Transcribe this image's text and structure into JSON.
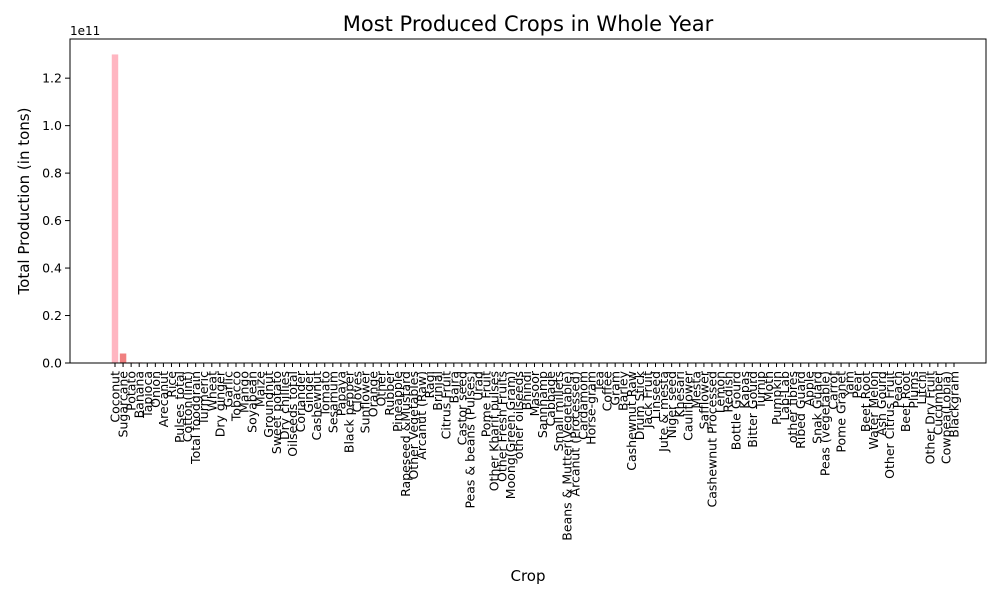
{
  "chart_data": {
    "type": "bar",
    "title": "Most Produced Crops in Whole Year",
    "xlabel": "Crop",
    "ylabel": "Total Production (in tons)",
    "y_offset_label": "1e11",
    "ylim": [
      0,
      136500000000.0
    ],
    "yticks": [
      0,
      20000000000.0,
      40000000000.0,
      60000000000.0,
      80000000000.0,
      100000000000.0,
      120000000000.0
    ],
    "ytick_labels": [
      "0.0",
      "0.2",
      "0.4",
      "0.6",
      "0.8",
      "1.0",
      "1.2"
    ],
    "grid": false,
    "legend": "none",
    "colors": [
      "#ffb6c1",
      "#f08080"
    ],
    "categories": [
      "Coconut",
      "Sugarcane",
      "Potato",
      "Banana",
      "Tapioca",
      "Onion",
      "Arecanut",
      "Rice",
      "Pulses total",
      "Cotton(lint)",
      "Total foodgrain",
      "Turmeric",
      "Wheat",
      "Dry ginger",
      "Garlic",
      "Tobacco",
      "Mango",
      "Soyabean",
      "Maize",
      "Groundnut",
      "Sweet potato",
      "Dry chillies",
      "Oilseeds total",
      "Coriander",
      "Ginger",
      "Cashewnut",
      "Tomato",
      "Sesamum",
      "Papaya",
      "Black pepper",
      "Cloves",
      "Sunflower",
      "Orange",
      "Other",
      "Rubber",
      "Pineapple",
      "Rapeseed &Mustard",
      "Other Vegetables",
      "Arcanut (Raw)",
      "Ragi",
      "Brinjal",
      "Citrus Fruit",
      "Bajra",
      "Castor seed",
      "Peas & beans (Pulses)",
      "Urad",
      "Pome Fruit",
      "Other Kharif pulses",
      "Other Fresh Fruits",
      "Moong(Green Gram)",
      "other oilseeds",
      "Bhindi",
      "Masoor",
      "Sannhamp",
      "Cabbage",
      "Small millets",
      "Beans & Mutter(Vegetable)",
      "Arcanut (Processed)",
      "Cardamom",
      "Horse-gram",
      "Tea",
      "Coffee",
      "Gram",
      "Barley",
      "Cashewnut Raw",
      "Drum Stick",
      "Jack Fruit",
      "Linseed",
      "Jute & mesta",
      "Niger seed",
      "Khesari",
      "Cauliflower",
      "Mesta",
      "Safflower",
      "Cashewnut Processed",
      "Lemon",
      "Redish",
      "Bottle Gourd",
      "Kapas",
      "Bitter Gourd",
      "Turnip",
      "Moth",
      "Pumpkin",
      "Lab-Lab",
      "other fibres",
      "Ribed Guard",
      "Apple",
      "Snak Guard",
      "Peas  (vegetable)",
      "Carrot",
      "Pome Granet",
      "Yam",
      "Pear",
      "Beet Root",
      "Water Melon",
      "Ash Gourd",
      "Other Citrus Fruit",
      "Peach",
      "Beet Root",
      "Plums",
      "Litchi",
      "Other Dry Fruit",
      "Cucumber",
      "Cowpea(Lobia)",
      "Blackgram"
    ],
    "values": [
      130000000000.0,
      4000000000.0,
      300000000.0,
      250000000.0,
      150000000.0,
      120000000.0,
      100000000.0,
      90000000.0,
      80000000.0,
      70000000.0,
      65000000.0,
      60000000.0,
      55000000.0,
      50000000.0,
      45000000.0,
      40000000.0,
      38000000.0,
      36000000.0,
      34000000.0,
      32000000.0,
      30000000.0,
      28000000.0,
      26000000.0,
      24000000.0,
      22000000.0,
      20000000.0,
      19000000.0,
      18000000.0,
      17000000.0,
      16000000.0,
      15000000.0,
      14000000.0,
      13000000.0,
      12000000.0,
      11000000.0,
      10000000.0,
      9500000.0,
      9000000.0,
      8500000.0,
      8000000.0,
      7500000.0,
      7000000.0,
      6500000.0,
      6000000.0,
      5500000.0,
      5000000.0,
      4800000.0,
      4600000.0,
      4400000.0,
      4200000.0,
      4000000.0,
      3800000.0,
      3600000.0,
      3400000.0,
      3200000.0,
      3000000.0,
      2800000.0,
      2600000.0,
      2400000.0,
      2200000.0,
      2000000.0,
      1900000.0,
      1800000.0,
      1700000.0,
      1600000.0,
      1500000.0,
      1400000.0,
      1300000.0,
      1200000.0,
      1100000.0,
      1000000.0,
      900000.0,
      800000.0,
      700000.0,
      600000.0,
      500000.0,
      450000.0,
      400000.0,
      350000.0,
      300000.0,
      280000.0,
      260000.0,
      240000.0,
      220000.0,
      200000.0,
      180000.0,
      160000.0,
      140000.0,
      120000.0,
      100000.0,
      90000.0,
      80000.0,
      70000.0,
      60000.0,
      50000.0,
      40000.0,
      35000.0,
      30000.0,
      25000.0,
      20000.0,
      15000.0,
      10000.0,
      8000.0,
      5000.0,
      2000.0
    ]
  }
}
